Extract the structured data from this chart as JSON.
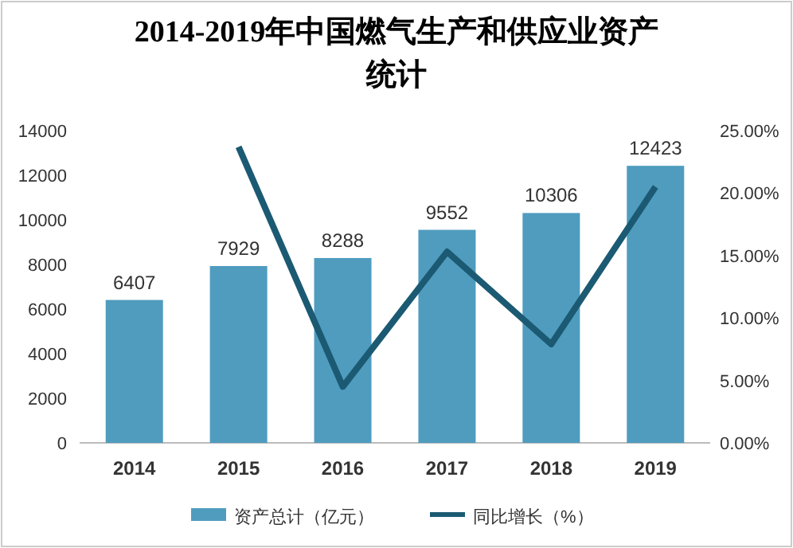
{
  "chart_data": {
    "type": "bar",
    "title": "2014-2019年中国燃气生产和供应业资产统计",
    "categories": [
      "2014",
      "2015",
      "2016",
      "2017",
      "2018",
      "2019"
    ],
    "series": [
      {
        "name": "资产总计（亿元）",
        "color": "#4f9cbf",
        "values": [
          6407,
          7929,
          8288,
          9552,
          10306,
          12423
        ],
        "value_labels": [
          "6407",
          "7929",
          "8288",
          "9552",
          "10306",
          "12423"
        ]
      },
      {
        "name": "同比增长（%）",
        "type": "line",
        "axis": "y2",
        "color": "#1b5a72",
        "values": [
          null,
          23.7,
          4.5,
          15.3,
          7.9,
          20.5
        ]
      }
    ],
    "ylim": [
      0,
      14000
    ],
    "yticks": [
      0,
      2000,
      4000,
      6000,
      8000,
      10000,
      12000,
      14000
    ],
    "y2lim": [
      0,
      25
    ],
    "y2ticks": [
      {
        "value": 0,
        "label": "0.00%"
      },
      {
        "value": 5,
        "label": "5.00%"
      },
      {
        "value": 10,
        "label": "10.00%"
      },
      {
        "value": 15,
        "label": "15.00%"
      },
      {
        "value": 20,
        "label": "20.00%"
      },
      {
        "value": 25,
        "label": "25.00%"
      }
    ],
    "legend": "bottom",
    "marker": "none",
    "line_style": "solid"
  }
}
